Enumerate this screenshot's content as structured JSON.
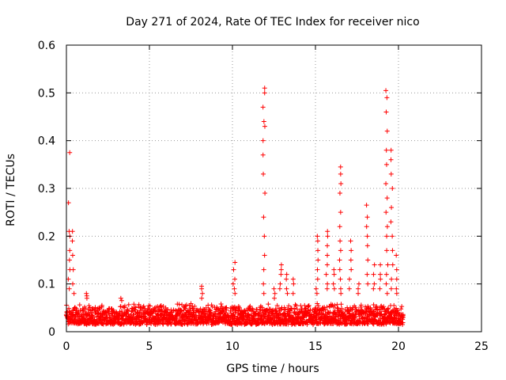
{
  "chart_data": {
    "type": "scatter",
    "title": "Day 271 of 2024, Rate Of TEC Index for receiver nico",
    "xlabel": "GPS time / hours",
    "ylabel": "ROTI / TECUs",
    "xlim": [
      0,
      25
    ],
    "ylim": [
      0,
      0.6
    ],
    "xticks": [
      0,
      5,
      10,
      15,
      20,
      25
    ],
    "yticks": [
      0,
      0.1,
      0.2,
      0.3,
      0.4,
      0.5,
      0.6
    ],
    "ytick_labels": [
      "0",
      "0.1",
      "0.2",
      "0.3",
      "0.4",
      "0.5",
      "0.6"
    ],
    "grid": true,
    "marker": "+",
    "color": "#ff0000",
    "baseline": {
      "x_range": [
        0,
        20.3
      ],
      "y_range": [
        0.01,
        0.06
      ]
    },
    "spikes": [
      {
        "x": 0.15,
        "values": [
          0.375,
          0.27,
          0.21,
          0.2,
          0.17,
          0.15,
          0.13,
          0.11,
          0.09
        ]
      },
      {
        "x": 0.4,
        "values": [
          0.21,
          0.19,
          0.16,
          0.13,
          0.1,
          0.08
        ]
      },
      {
        "x": 1.2,
        "values": [
          0.08,
          0.075,
          0.07
        ]
      },
      {
        "x": 3.3,
        "values": [
          0.07,
          0.065
        ]
      },
      {
        "x": 8.2,
        "values": [
          0.095,
          0.09,
          0.08,
          0.07
        ]
      },
      {
        "x": 10.1,
        "values": [
          0.145,
          0.13,
          0.11,
          0.1,
          0.09,
          0.08
        ]
      },
      {
        "x": 11.9,
        "values": [
          0.51,
          0.5,
          0.47,
          0.44,
          0.43,
          0.4,
          0.37,
          0.33,
          0.29,
          0.24,
          0.2,
          0.16,
          0.13,
          0.1,
          0.08
        ]
      },
      {
        "x": 12.5,
        "values": [
          0.09,
          0.08,
          0.07
        ]
      },
      {
        "x": 12.9,
        "values": [
          0.14,
          0.13,
          0.12,
          0.1,
          0.09
        ]
      },
      {
        "x": 13.3,
        "values": [
          0.12,
          0.11,
          0.09,
          0.08
        ]
      },
      {
        "x": 13.7,
        "values": [
          0.11,
          0.1,
          0.08
        ]
      },
      {
        "x": 15.1,
        "values": [
          0.2,
          0.19,
          0.17,
          0.15,
          0.13,
          0.11,
          0.09,
          0.08
        ]
      },
      {
        "x": 15.7,
        "values": [
          0.21,
          0.2,
          0.18,
          0.16,
          0.14,
          0.12,
          0.1,
          0.09
        ]
      },
      {
        "x": 16.1,
        "values": [
          0.13,
          0.12,
          0.1,
          0.09
        ]
      },
      {
        "x": 16.5,
        "values": [
          0.345,
          0.33,
          0.31,
          0.29,
          0.25,
          0.22,
          0.19,
          0.17,
          0.15,
          0.13,
          0.11,
          0.09,
          0.08
        ]
      },
      {
        "x": 17.1,
        "values": [
          0.19,
          0.17,
          0.15,
          0.13,
          0.11,
          0.09
        ]
      },
      {
        "x": 17.6,
        "values": [
          0.1,
          0.09,
          0.08
        ]
      },
      {
        "x": 18.1,
        "values": [
          0.265,
          0.24,
          0.22,
          0.2,
          0.18,
          0.15,
          0.12,
          0.1
        ]
      },
      {
        "x": 18.5,
        "values": [
          0.14,
          0.12,
          0.1,
          0.09
        ]
      },
      {
        "x": 18.9,
        "values": [
          0.14,
          0.12,
          0.11,
          0.09
        ]
      },
      {
        "x": 19.3,
        "values": [
          0.505,
          0.49,
          0.46,
          0.42,
          0.38,
          0.35,
          0.31,
          0.28,
          0.25,
          0.22,
          0.2,
          0.17,
          0.14,
          0.12,
          0.1,
          0.08
        ]
      },
      {
        "x": 19.6,
        "values": [
          0.38,
          0.36,
          0.33,
          0.3,
          0.26,
          0.23,
          0.2,
          0.17,
          0.14,
          0.11,
          0.09
        ]
      },
      {
        "x": 19.9,
        "values": [
          0.16,
          0.13,
          0.11,
          0.09,
          0.08
        ]
      }
    ]
  }
}
